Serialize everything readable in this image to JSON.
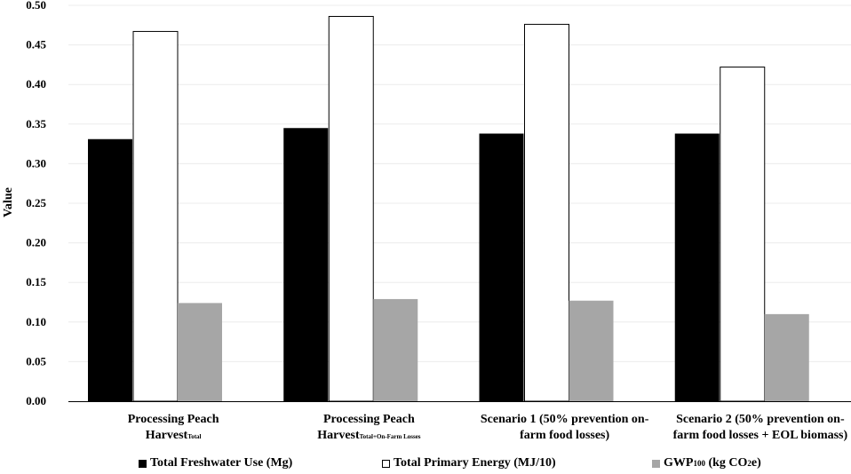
{
  "chart_data": {
    "type": "bar",
    "title": "",
    "xlabel": "",
    "ylabel": "Value",
    "ylim": [
      0,
      0.5
    ],
    "yticks": [
      "0.00",
      "0.05",
      "0.10",
      "0.15",
      "0.20",
      "0.25",
      "0.30",
      "0.35",
      "0.40",
      "0.45",
      "0.50"
    ],
    "grid": true,
    "legend_position": "bottom",
    "categories": [
      {
        "main": "Processing Peach",
        "line2": "Harvest",
        "sub": "Total",
        "line2_rest": ""
      },
      {
        "main": "Processing Peach",
        "line2": "Harvest",
        "sub": "Total+On-Farm Losses",
        "line2_rest": ""
      },
      {
        "main": "Scenario 1 (50% prevention on-",
        "line2": "farm food losses)",
        "sub": "",
        "line2_rest": ""
      },
      {
        "main": "Scenario 2 (50% prevention on-",
        "line2": "farm food losses + EOL biomass)",
        "sub": "",
        "line2_rest": ""
      }
    ],
    "series": [
      {
        "name": "Total Freshwater Use (Mg)",
        "color": "#000000",
        "values": [
          0.331,
          0.345,
          0.338,
          0.338
        ]
      },
      {
        "name": "Total Primary Energy (MJ/10)",
        "color": "#ffffff",
        "values": [
          0.467,
          0.486,
          0.476,
          0.422
        ]
      },
      {
        "name": "GWP100 (kg CO2e)",
        "color": "#a6a6a6",
        "values": [
          0.124,
          0.129,
          0.127,
          0.11
        ]
      }
    ]
  },
  "legend": {
    "item1": {
      "label": "Total Freshwater Use (Mg)"
    },
    "item2": {
      "label": "Total Primary Energy (MJ/10)"
    },
    "item3": {
      "pre": "GWP",
      "sub": "100",
      "mid": " (kg CO",
      "sub2": "2",
      "post": "e)"
    }
  }
}
